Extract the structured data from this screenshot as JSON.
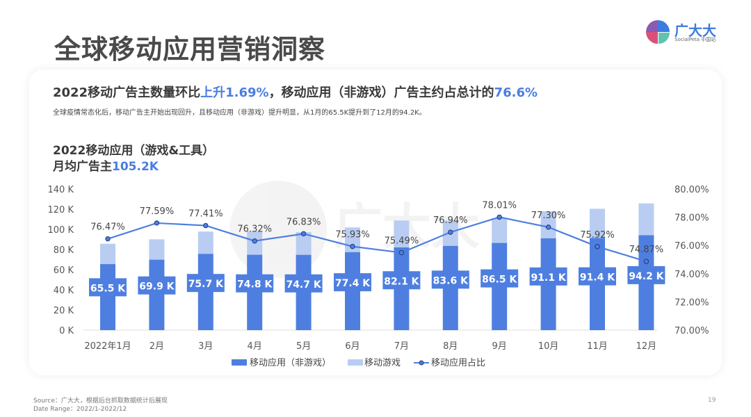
{
  "page": {
    "title": "全球移动应用营销洞察",
    "logo": {
      "name": "广大大",
      "sub": "SocialPeta 中国站"
    },
    "headline": {
      "part1": "2022移动广告主数量环比",
      "hl1": "上升1.69%",
      "part2": "，移动应用（非游戏）广告主约占总计的",
      "hl2": "76.6%"
    },
    "subtitle": "全球疫情常态化后，移动广告主开始出现回升，且移动应用（非游戏）提升明显，从1月的65.5K提升到了12月的94.2K。",
    "chart_title_line1": "2022移动应用（游戏&工具）",
    "chart_title_line2": "月均广告主",
    "chart_title_value": "105.2K",
    "source": "Source：广大大，根据后台抓取数据统计后展现",
    "date_range": "Date Range：2022/1-2022/12",
    "page_number": "19",
    "watermark": "广大大 SocialPeta 中国站"
  },
  "chart_data": {
    "type": "bar",
    "stacked": true,
    "categories": [
      "2022年1月",
      "2月",
      "3月",
      "4月",
      "5月",
      "6月",
      "7月",
      "8月",
      "9月",
      "10月",
      "11月",
      "12月"
    ],
    "series": [
      {
        "name": "移动应用（非游戏）",
        "type": "bar",
        "axis": "left",
        "color": "#4e7fe0",
        "values": [
          65.5,
          69.9,
          75.7,
          74.8,
          74.7,
          77.4,
          82.1,
          83.6,
          86.5,
          91.1,
          91.4,
          94.2
        ],
        "labels": [
          "65.5 K",
          "69.9 K",
          "75.7 K",
          "74.8 K",
          "74.7 K",
          "77.4 K",
          "82.1 K",
          "83.6 K",
          "86.5 K",
          "91.1 K",
          "91.4 K",
          "94.2 K"
        ]
      },
      {
        "name": "移动游戏",
        "type": "bar",
        "axis": "left",
        "color": "#b9cdf2",
        "values": [
          20.2,
          20.2,
          22.1,
          23.2,
          22.5,
          24.5,
          26.7,
          25.1,
          24.4,
          26.8,
          29.0,
          31.6
        ]
      },
      {
        "name": "移动应用占比",
        "type": "line",
        "axis": "right",
        "color": "#4e7fe0",
        "values": [
          76.47,
          77.59,
          77.41,
          76.32,
          76.83,
          75.93,
          75.49,
          76.94,
          78.01,
          77.3,
          75.92,
          74.87
        ],
        "labels": [
          "76.47%",
          "77.59%",
          "77.41%",
          "76.32%",
          "76.83%",
          "75.93%",
          "75.49%",
          "76.94%",
          "78.01%",
          "77.30%",
          "75.92%",
          "74.87%"
        ]
      }
    ],
    "y_left": {
      "range": [
        0,
        140
      ],
      "ticks": [
        "0 K",
        "20 K",
        "40 K",
        "60 K",
        "80 K",
        "100 K",
        "120 K",
        "140 K"
      ]
    },
    "y_right": {
      "range": [
        70,
        80
      ],
      "ticks": [
        "70.00%",
        "72.00%",
        "74.00%",
        "76.00%",
        "78.00%",
        "80.00%"
      ]
    },
    "grid": false,
    "legend": "bottom"
  }
}
